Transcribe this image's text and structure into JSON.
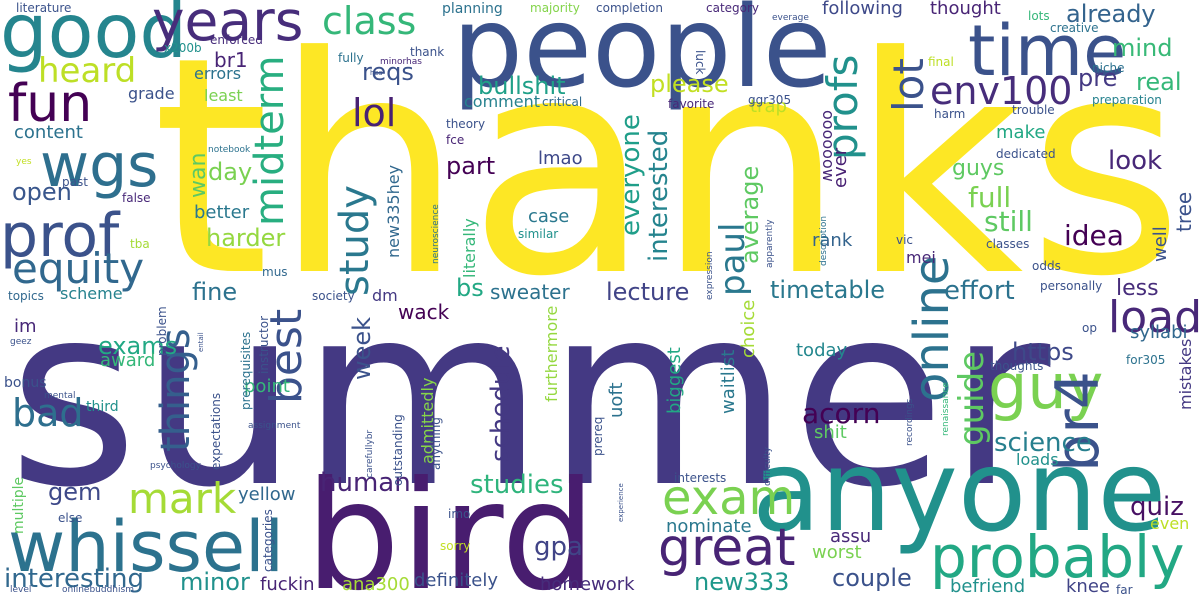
{
  "wordcloud": {
    "words": [
      {
        "text": "thanks",
        "color": "#fde725"
      },
      {
        "text": "summer",
        "color": "#443983"
      },
      {
        "text": "bird",
        "color": "#481d6f"
      },
      {
        "text": "anyone",
        "color": "#21918c"
      },
      {
        "text": "people",
        "color": "#3b528b"
      },
      {
        "text": "good",
        "color": "#25858e"
      },
      {
        "text": "time",
        "color": "#3b528b"
      },
      {
        "text": "whissell",
        "color": "#2c728e"
      },
      {
        "text": "years",
        "color": "#472d7b"
      },
      {
        "text": "probably",
        "color": "#22a884"
      },
      {
        "text": "wgs",
        "color": "#2e6f8e"
      },
      {
        "text": "prof",
        "color": "#3b528b"
      },
      {
        "text": "guy",
        "color": "#7ad151"
      },
      {
        "text": "great",
        "color": "#482475"
      },
      {
        "text": "exam",
        "color": "#7ad151"
      },
      {
        "text": "fun",
        "color": "#440154"
      },
      {
        "text": "equity",
        "color": "#31688e"
      },
      {
        "text": "mark",
        "color": "#a5db36"
      },
      {
        "text": "best",
        "color": "#3b528b"
      },
      {
        "text": "br4",
        "color": "#3b528b"
      },
      {
        "text": "class",
        "color": "#35b779"
      },
      {
        "text": "online",
        "color": "#2c728e"
      },
      {
        "text": "load",
        "color": "#482878"
      },
      {
        "text": "heard",
        "color": "#bddf26"
      },
      {
        "text": "profs",
        "color": "#21918c"
      },
      {
        "text": "lot",
        "color": "#3b528b"
      },
      {
        "text": "env100",
        "color": "#472d7b"
      },
      {
        "text": "study",
        "color": "#2a788e"
      },
      {
        "text": "things",
        "color": "#355f8d"
      },
      {
        "text": "midterm",
        "color": "#28ae80"
      },
      {
        "text": "lol",
        "color": "#482173"
      },
      {
        "text": "paul",
        "color": "#2a788e"
      },
      {
        "text": "guide",
        "color": "#5ec962"
      },
      {
        "text": "bad",
        "color": "#2e6f8e"
      },
      {
        "text": "acorn",
        "color": "#440154"
      },
      {
        "text": "idea",
        "color": "#440154"
      },
      {
        "text": "interesting",
        "color": "#31688e"
      },
      {
        "text": "schedule",
        "color": "#443983"
      },
      {
        "text": "human",
        "color": "#482475"
      },
      {
        "text": "science",
        "color": "#277f8e"
      },
      {
        "text": "quiz",
        "color": "#471063"
      },
      {
        "text": "look",
        "color": "#482878"
      },
      {
        "text": "full",
        "color": "#7ad151"
      },
      {
        "text": "still",
        "color": "#5ec962"
      },
      {
        "text": "effort",
        "color": "#2c728e"
      },
      {
        "text": "timetable",
        "color": "#2a788e"
      },
      {
        "text": "lecture",
        "color": "#414487"
      },
      {
        "text": "couple",
        "color": "#3b528b"
      },
      {
        "text": "gpa",
        "color": "#414487"
      },
      {
        "text": "studies",
        "color": "#2fb47c"
      },
      {
        "text": "new333",
        "color": "#1f988b"
      },
      {
        "text": "minor",
        "color": "#21918c"
      },
      {
        "text": "already",
        "color": "#33638d"
      },
      {
        "text": "mind",
        "color": "#38b977"
      },
      {
        "text": "real",
        "color": "#35b779"
      },
      {
        "text": "pre",
        "color": "#443983"
      },
      {
        "text": "reqs",
        "color": "#3b528b"
      },
      {
        "text": "bullshit",
        "color": "#1fa088"
      },
      {
        "text": "please",
        "color": "#c2df23"
      },
      {
        "text": "everyone",
        "color": "#1f9e89"
      },
      {
        "text": "interested",
        "color": "#25848e"
      },
      {
        "text": "average",
        "color": "#5ec962"
      },
      {
        "text": "https",
        "color": "#3e4989"
      },
      {
        "text": "exams",
        "color": "#22a884"
      },
      {
        "text": "gem",
        "color": "#3e4989"
      },
      {
        "text": "content",
        "color": "#2c728e"
      },
      {
        "text": "fine",
        "color": "#2c728e"
      },
      {
        "text": "day",
        "color": "#7ad151"
      },
      {
        "text": "open",
        "color": "#39568c"
      },
      {
        "text": "harder",
        "color": "#95d840"
      },
      {
        "text": "better",
        "color": "#2a788e"
      },
      {
        "text": "wan",
        "color": "#5ec962"
      },
      {
        "text": "part",
        "color": "#440154"
      },
      {
        "text": "bs",
        "color": "#22a884"
      },
      {
        "text": "sweater",
        "color": "#2c728e"
      },
      {
        "text": "wack",
        "color": "#440154"
      },
      {
        "text": "week",
        "color": "#3b528b"
      },
      {
        "text": "award",
        "color": "#35b779"
      },
      {
        "text": "yellow",
        "color": "#31688e"
      },
      {
        "text": "definitely",
        "color": "#3b528b"
      },
      {
        "text": "homework",
        "color": "#472d7b"
      },
      {
        "text": "ana300",
        "color": "#a5db36"
      },
      {
        "text": "fuckin",
        "color": "#482475"
      },
      {
        "text": "befriend",
        "color": "#21918c"
      },
      {
        "text": "knee",
        "color": "#414487"
      },
      {
        "text": "worst",
        "color": "#7ad151"
      },
      {
        "text": "nominate",
        "color": "#2a788e"
      },
      {
        "text": "assu",
        "color": "#482878"
      },
      {
        "text": "even",
        "color": "#bddf26"
      },
      {
        "text": "today",
        "color": "#24878e"
      },
      {
        "text": "rank",
        "color": "#33638d"
      },
      {
        "text": "ever",
        "color": "#482173"
      },
      {
        "text": "following",
        "color": "#3e4989"
      },
      {
        "text": "thought",
        "color": "#482475"
      },
      {
        "text": "lmao",
        "color": "#3e4989"
      },
      {
        "text": "comment",
        "color": "#26828e"
      },
      {
        "text": "make",
        "color": "#22a884"
      },
      {
        "text": "guys",
        "color": "#5ec962"
      },
      {
        "text": "less",
        "color": "#472d7b"
      },
      {
        "text": "tree",
        "color": "#3b528b"
      },
      {
        "text": "well",
        "color": "#3b528b"
      },
      {
        "text": "mei",
        "color": "#482878"
      },
      {
        "text": "syllabi",
        "color": "#31688e"
      },
      {
        "text": "mistakes",
        "color": "#443983"
      },
      {
        "text": "loads",
        "color": "#21918c"
      },
      {
        "text": "waitlist",
        "color": "#2a788e"
      },
      {
        "text": "choice",
        "color": "#a5db36"
      },
      {
        "text": "biggest",
        "color": "#22a884"
      },
      {
        "text": "furthermore",
        "color": "#95d840"
      },
      {
        "text": "admittedly",
        "color": "#86d549"
      },
      {
        "text": "case",
        "color": "#2a788e"
      },
      {
        "text": "new335hey",
        "color": "#31688e"
      },
      {
        "text": "literally",
        "color": "#35b779"
      },
      {
        "text": "point",
        "color": "#35b779"
      },
      {
        "text": "shit",
        "color": "#5ec962"
      },
      {
        "text": "uoft",
        "color": "#2c728e"
      },
      {
        "text": "trap",
        "color": "#bddf26"
      },
      {
        "text": "oooooow",
        "color": "#482878"
      },
      {
        "text": "br1",
        "color": "#482475"
      },
      {
        "text": "errors",
        "color": "#2c728e"
      },
      {
        "text": "grade",
        "color": "#3b528b"
      },
      {
        "text": "least",
        "color": "#7ad151"
      },
      {
        "text": "im",
        "color": "#482878"
      },
      {
        "text": "scheme",
        "color": "#26828e"
      },
      {
        "text": "dm",
        "color": "#443983"
      },
      {
        "text": "topics",
        "color": "#31688e"
      },
      {
        "text": "bonus",
        "color": "#3b528b"
      },
      {
        "text": "third",
        "color": "#21918c"
      },
      {
        "text": "multiple",
        "color": "#5ec962"
      },
      {
        "text": "else",
        "color": "#3b528b"
      },
      {
        "text": "sorry",
        "color": "#c2df23"
      },
      {
        "text": "enforced",
        "color": "#472d7b"
      },
      {
        "text": "x200b",
        "color": "#21918c"
      },
      {
        "text": "literature",
        "color": "#3b528b"
      },
      {
        "text": "planning",
        "color": "#2c728e"
      },
      {
        "text": "majority",
        "color": "#84d44b"
      },
      {
        "text": "completion",
        "color": "#3b528b"
      },
      {
        "text": "category",
        "color": "#482878"
      },
      {
        "text": "everage",
        "color": "#3b528b"
      },
      {
        "text": "lots",
        "color": "#35b779"
      },
      {
        "text": "creative",
        "color": "#2c728e"
      },
      {
        "text": "niche",
        "color": "#2c728e"
      },
      {
        "text": "preparation",
        "color": "#26828e"
      },
      {
        "text": "trouble",
        "color": "#3b528b"
      },
      {
        "text": "final",
        "color": "#bddf26"
      },
      {
        "text": "ggr305",
        "color": "#3b528b"
      },
      {
        "text": "favorite",
        "color": "#482878"
      },
      {
        "text": "luck",
        "color": "#3b528b"
      },
      {
        "text": "critical",
        "color": "#31688e"
      },
      {
        "text": "theory",
        "color": "#3b528b"
      },
      {
        "text": "fce",
        "color": "#482475"
      },
      {
        "text": "fully",
        "color": "#2c728e"
      },
      {
        "text": "thank",
        "color": "#3b528b"
      },
      {
        "text": "minorhas",
        "color": "#482878"
      },
      {
        "text": "hes",
        "color": "#3b528b"
      },
      {
        "text": "harm",
        "color": "#3b528b"
      },
      {
        "text": "dedicated",
        "color": "#3b528b"
      },
      {
        "text": "notebook",
        "color": "#2c728e"
      },
      {
        "text": "yes",
        "color": "#c2df23"
      },
      {
        "text": "past",
        "color": "#3b528b"
      },
      {
        "text": "false",
        "color": "#482878"
      },
      {
        "text": "tba",
        "color": "#a5db36"
      },
      {
        "text": "mus",
        "color": "#31688e"
      },
      {
        "text": "society",
        "color": "#3b528b"
      },
      {
        "text": "neuroscience",
        "color": "#2c728e"
      },
      {
        "text": "similar",
        "color": "#21918c"
      },
      {
        "text": "description",
        "color": "#2c728e"
      },
      {
        "text": "apparently",
        "color": "#3b528b"
      },
      {
        "text": "vic",
        "color": "#3b528b"
      },
      {
        "text": "classes",
        "color": "#3b528b"
      },
      {
        "text": "odds",
        "color": "#3b528b"
      },
      {
        "text": "expression",
        "color": "#3b528b"
      },
      {
        "text": "personally",
        "color": "#3b528b"
      },
      {
        "text": "op",
        "color": "#3b528b"
      },
      {
        "text": "for305",
        "color": "#2c728e"
      },
      {
        "text": "thoughts",
        "color": "#3b528b"
      },
      {
        "text": "renaissance",
        "color": "#35b779"
      },
      {
        "text": "recordings",
        "color": "#3b528b"
      },
      {
        "text": "difficulty",
        "color": "#3b528b"
      },
      {
        "text": "interests",
        "color": "#3b528b"
      },
      {
        "text": "experience",
        "color": "#3b528b"
      },
      {
        "text": "imo",
        "color": "#3b528b"
      },
      {
        "text": "prereq",
        "color": "#3b528b"
      },
      {
        "text": "anything",
        "color": "#3b528b"
      },
      {
        "text": "outstanding",
        "color": "#3b528b"
      },
      {
        "text": "carefullybr",
        "color": "#3b528b"
      },
      {
        "text": "categories",
        "color": "#3b528b"
      },
      {
        "text": "assignment",
        "color": "#3b528b"
      },
      {
        "text": "expectations",
        "color": "#3b528b"
      },
      {
        "text": "instructor",
        "color": "#3b528b"
      },
      {
        "text": "problem",
        "color": "#3b528b"
      },
      {
        "text": "prerequisites",
        "color": "#2c728e"
      },
      {
        "text": "entail",
        "color": "#3b528b"
      },
      {
        "text": "geez",
        "color": "#3b528b"
      },
      {
        "text": "mental",
        "color": "#3b528b"
      },
      {
        "text": "psychology",
        "color": "#3b528b"
      },
      {
        "text": "level",
        "color": "#3b528b"
      },
      {
        "text": "onlinebuddhism",
        "color": "#3b528b"
      },
      {
        "text": "far",
        "color": "#3b528b"
      }
    ]
  }
}
